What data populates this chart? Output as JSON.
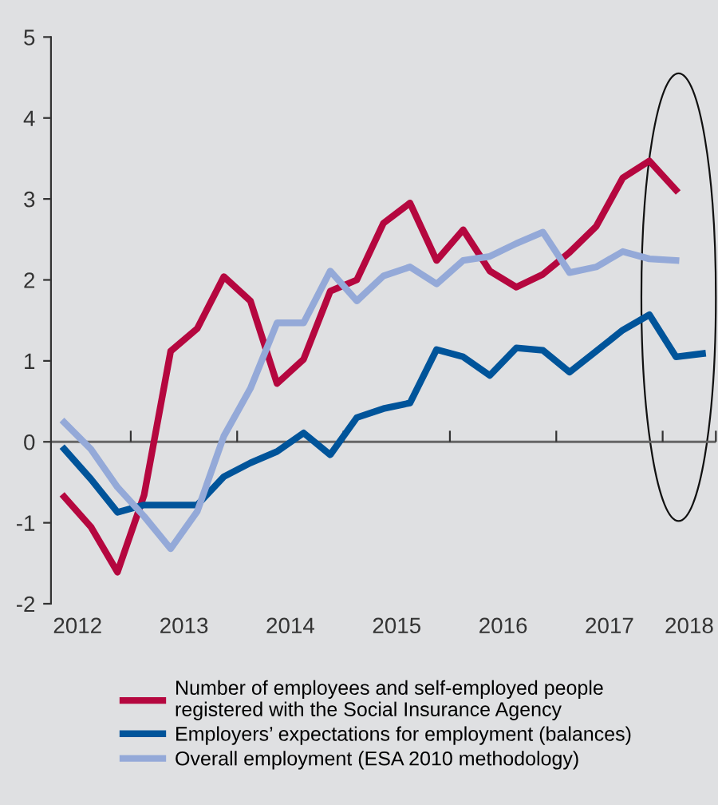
{
  "chart_data": {
    "type": "line",
    "x": [
      2012.375,
      2012.625,
      2012.875,
      2013.125,
      2013.375,
      2013.625,
      2013.875,
      2014.125,
      2014.375,
      2014.625,
      2014.875,
      2015.125,
      2015.375,
      2015.625,
      2015.875,
      2016.125,
      2016.375,
      2016.625,
      2016.875,
      2017.125,
      2017.375,
      2017.625,
      2017.875,
      2018.125,
      2018.375
    ],
    "series": [
      {
        "name": "Number of employees and self-employed people registered with the Social Insurance Agency",
        "color": "#b5073f",
        "values": [
          -0.68,
          -1.05,
          -1.61,
          -0.66,
          1.12,
          1.4,
          2.04,
          1.74,
          0.72,
          1.02,
          1.86,
          2.0,
          2.7,
          2.95,
          2.24,
          2.62,
          2.11,
          1.91,
          2.07,
          2.34,
          2.66,
          3.26,
          3.47,
          3.11,
          null
        ]
      },
      {
        "name": "Employers’ expectations for employment (balances)",
        "color": "#00549a",
        "values": [
          -0.09,
          -0.46,
          -0.87,
          -0.78,
          -0.78,
          -0.78,
          -0.43,
          -0.26,
          -0.12,
          0.11,
          -0.16,
          0.3,
          0.41,
          0.48,
          1.14,
          1.05,
          0.82,
          1.16,
          1.13,
          0.86,
          1.12,
          1.38,
          1.57,
          1.05,
          1.09
        ]
      },
      {
        "name": "Overall employment (ESA 2010 methodology)",
        "color": "#94a9d8",
        "values": [
          0.24,
          -0.09,
          -0.56,
          -0.92,
          -1.32,
          -0.86,
          0.07,
          0.66,
          1.47,
          1.47,
          2.11,
          1.74,
          2.05,
          2.16,
          1.95,
          2.24,
          2.29,
          2.45,
          2.59,
          2.09,
          2.16,
          2.35,
          2.26,
          2.24,
          null
        ]
      }
    ],
    "xlim": [
      2012.25,
      2018.5
    ],
    "xticks": [
      {
        "value": 2013,
        "label": null
      },
      {
        "value": 2014,
        "label": null
      },
      {
        "value": 2015,
        "label": null
      },
      {
        "value": 2016,
        "label": null
      },
      {
        "value": 2017,
        "label": null
      },
      {
        "value": 2018,
        "label": null
      },
      {
        "value": 2018.5,
        "label": null
      },
      {
        "value": 2012.5,
        "label": "2012"
      },
      {
        "value": 2013.5,
        "label": "2013"
      },
      {
        "value": 2014.5,
        "label": "2014"
      },
      {
        "value": 2015.5,
        "label": "2015"
      },
      {
        "value": 2016.5,
        "label": "2016"
      },
      {
        "value": 2017.5,
        "label": "2017"
      },
      {
        "value": 2018.25,
        "label": "2018"
      }
    ],
    "ylim": [
      -2,
      5
    ],
    "yticks": [
      -2,
      -1,
      0,
      1,
      2,
      3,
      4,
      5
    ],
    "ref_lines": [
      {
        "axis": "y",
        "value": 0,
        "color": "#666666"
      }
    ],
    "grid": false,
    "legend": "bottom",
    "marker": "none",
    "line_style": "solid"
  }
}
